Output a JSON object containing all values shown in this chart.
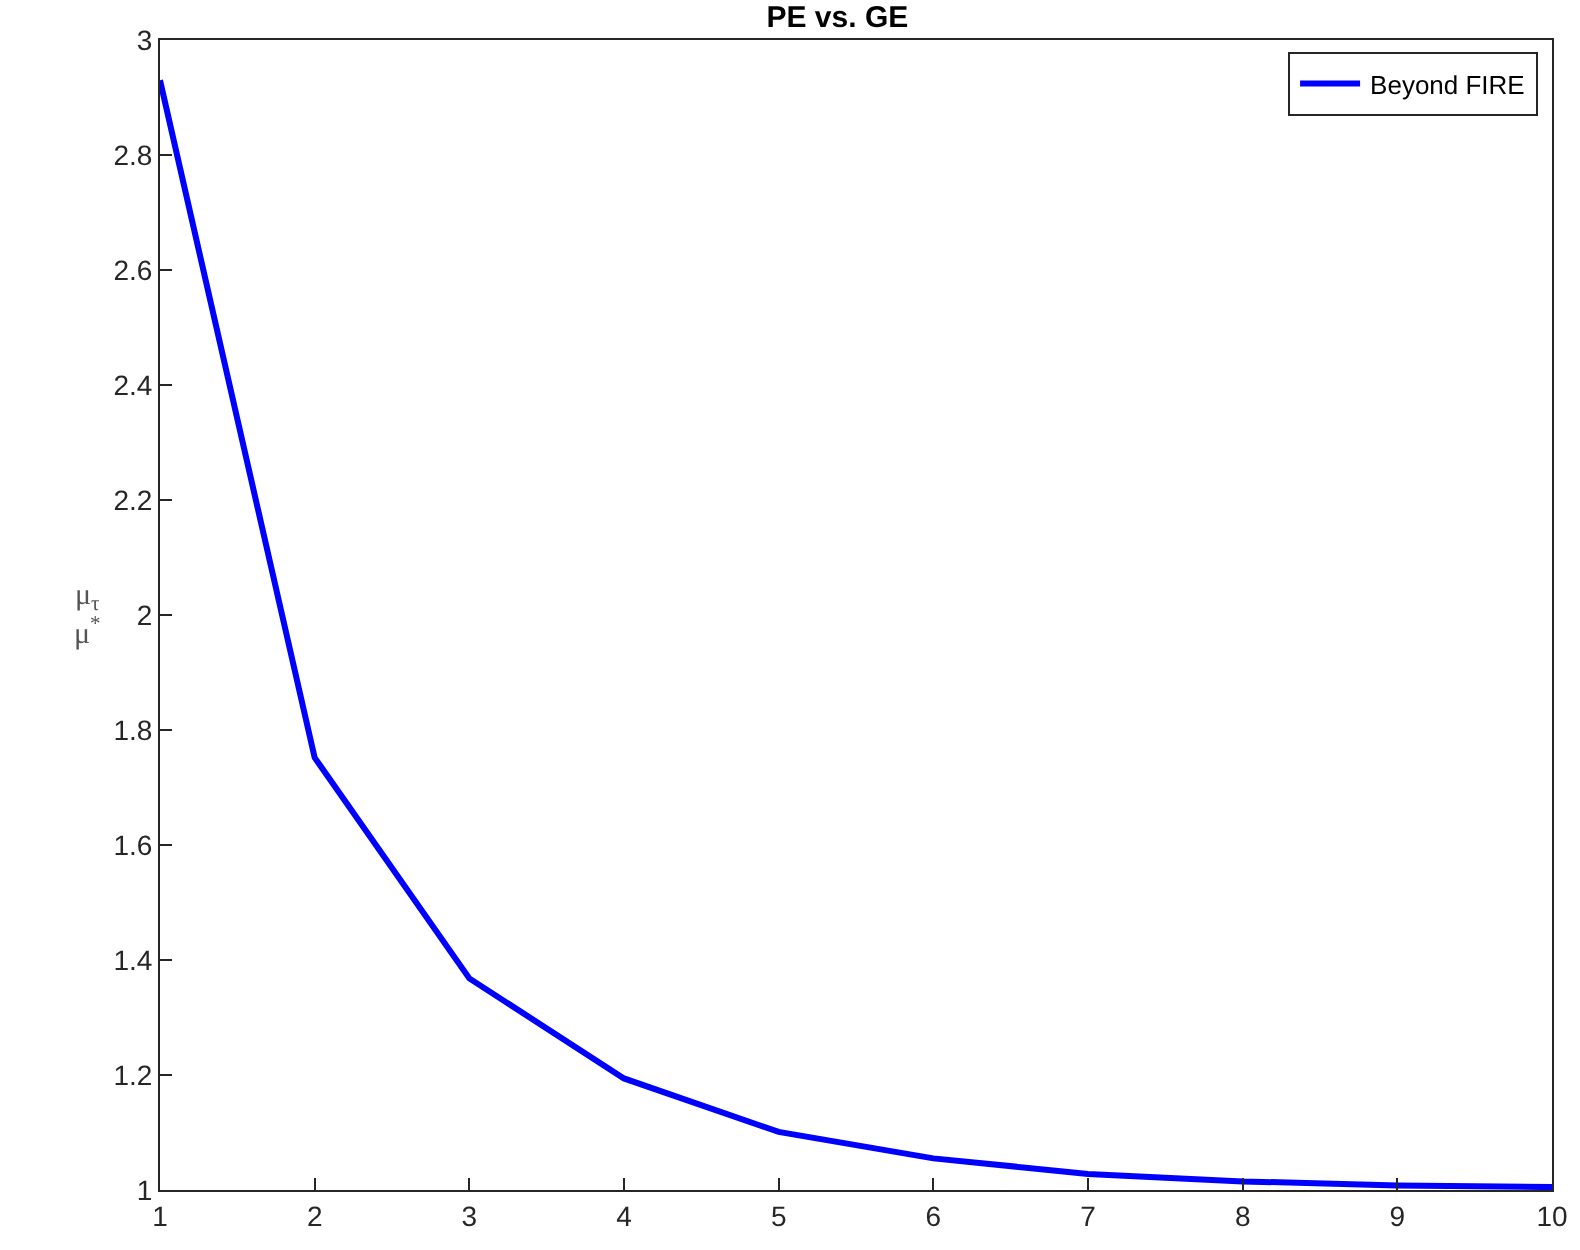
{
  "chart_data": {
    "type": "line",
    "title": "PE vs. GE",
    "ylabel": "μ$_{τ}$\nμ$^{*}$",
    "x": [
      1,
      2,
      3,
      4,
      5,
      6,
      7,
      8,
      9,
      10
    ],
    "series": [
      {
        "name": "Beyond FIRE",
        "color": "#0000ff",
        "values": [
          2.93,
          1.752,
          1.368,
          1.194,
          1.101,
          1.055,
          1.028,
          1.015,
          1.008,
          1.005
        ]
      }
    ],
    "xlim": [
      1,
      10
    ],
    "xticks": [
      1,
      2,
      3,
      4,
      5,
      6,
      7,
      8,
      9,
      10
    ],
    "ylim": [
      1,
      3
    ],
    "yticks": [
      1,
      1.2,
      1.4,
      1.6,
      1.8,
      2,
      2.2,
      2.4,
      2.6,
      2.8,
      3
    ],
    "grid": false,
    "legend": "top right",
    "marker": "none",
    "line_style": "solid"
  }
}
